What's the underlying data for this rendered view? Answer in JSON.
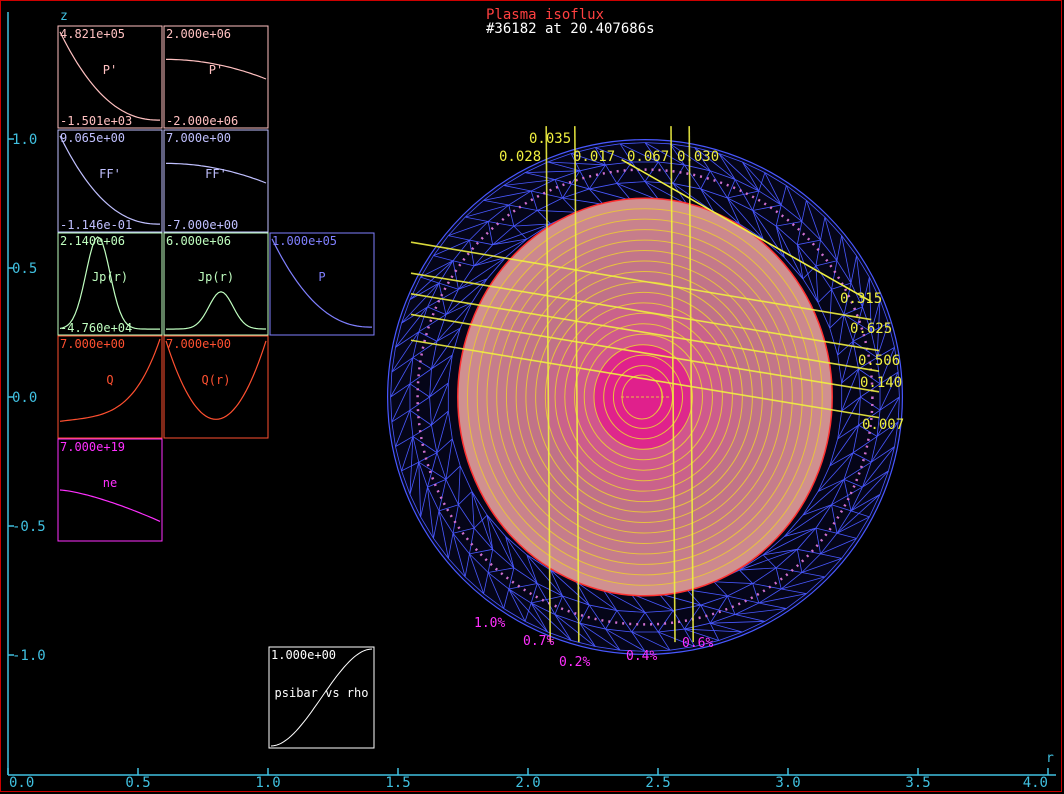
{
  "header": {
    "title": "Plasma isoflux",
    "subtitle": "#36182 at 20.407686s",
    "title_color": "#ff4040",
    "subtitle_color": "#ffffff"
  },
  "axes": {
    "xlabel": "r",
    "ylabel": "z",
    "xlim": [
      0.0,
      4.0
    ],
    "ylim": [
      -1.55,
      1.55
    ],
    "x_ticks": [
      "0.0",
      "0.5",
      "1.0",
      "1.5",
      "2.0",
      "2.5",
      "3.0",
      "3.5",
      "4.0"
    ],
    "y_ticks": [
      "1.0",
      "0.5",
      "0.0",
      "-0.5",
      "-1.0"
    ],
    "axis_color": "#40c0e0"
  },
  "profiles": [
    {
      "label": "P'",
      "top": "4.821e+05",
      "bottom": "-1.501e+03",
      "color": "#ffc0c0",
      "shape": "decay"
    },
    {
      "label": "P'",
      "top": "2.000e+06",
      "bottom": "-2.000e+06",
      "color": "#ffc0c0",
      "shape": "flat_decline"
    },
    {
      "label": "FF'",
      "top": "9.065e+00",
      "bottom": "-1.146e-01",
      "color": "#c0c0ff",
      "shape": "decay"
    },
    {
      "label": "FF'",
      "top": "7.000e+00",
      "bottom": "-7.000e+00",
      "color": "#c0c0ff",
      "shape": "flat_decline"
    },
    {
      "label": "Jp(r)",
      "top": "2.140e+06",
      "bottom": "-4.760e+04",
      "color": "#c0ffc0",
      "shape": "peak"
    },
    {
      "label": "Jp(r)",
      "top": "6.000e+06",
      "bottom": "",
      "color": "#c0ffc0",
      "shape": "low_peak"
    },
    {
      "label": "P",
      "top": "1.000e+05",
      "bottom": "",
      "color": "#8080ff",
      "shape": "decay"
    },
    {
      "label": "Q",
      "top": "7.000e+00",
      "bottom": "",
      "color": "#ff5030",
      "shape": "rise"
    },
    {
      "label": "Q(r)",
      "top": "7.000e+00",
      "bottom": "",
      "color": "#ff5030",
      "shape": "bowl"
    },
    {
      "label": "ne",
      "top": "7.000e+19",
      "bottom": "",
      "color": "#ff30ff",
      "shape": "gentle_decline"
    }
  ],
  "psibar_panel": {
    "top": "1.000e+00",
    "label": "psibar vs rho",
    "color": "#ffffff"
  },
  "plasma": {
    "axis_r": 2.45,
    "axis_z": 0.0,
    "minor_radius": 0.72,
    "elongation": 1.07,
    "wall_radius": 0.99,
    "fill_color": "#d09090",
    "core_color": "#e0208c",
    "edge_color": "#ff3030",
    "flux_color": "#e8c040",
    "mesh_color": "#4858ff"
  },
  "chart_data": {
    "type": "line",
    "title": "Plasma isoflux",
    "subtitle": "#36182 at 20.407686s",
    "xlabel": "r",
    "ylabel": "z",
    "xlim": [
      0.0,
      4.0
    ],
    "ylim": [
      -1.55,
      1.55
    ],
    "grid": false,
    "chord_labels_top": [
      "0.035",
      "0.028",
      "0.017",
      "0.067",
      "0.030"
    ],
    "chord_labels_right": [
      "0.315",
      "0.625",
      "0.506",
      "0.140",
      "0.007"
    ],
    "percent_labels": [
      "1.0%",
      "0.7%",
      "0.2%",
      "0.4%",
      "0.6%"
    ],
    "vertical_chords": [
      {
        "label": "0.028",
        "r": 2.07
      },
      {
        "label": "0.017",
        "r": 2.18
      },
      {
        "label": "0.067",
        "r": 2.55
      },
      {
        "label": "0.030",
        "r": 2.62
      }
    ],
    "horizontal_chords": [
      {
        "label": "0.315",
        "r0": 1.55,
        "z0": 0.3,
        "r1": 3.32,
        "z1": 0.3
      },
      {
        "label": "0.625",
        "r0": 1.55,
        "z0": 0.18,
        "r1": 3.35,
        "z1": 0.18
      },
      {
        "label": "0.506",
        "r0": 1.55,
        "z0": 0.1,
        "r1": 3.35,
        "z1": 0.1
      },
      {
        "label": "0.140",
        "r0": 1.55,
        "z0": 0.02,
        "r1": 3.35,
        "z1": 0.02
      },
      {
        "label": "0.007",
        "r0": 1.55,
        "z0": -0.08,
        "r1": 3.35,
        "z1": -0.08
      }
    ]
  }
}
